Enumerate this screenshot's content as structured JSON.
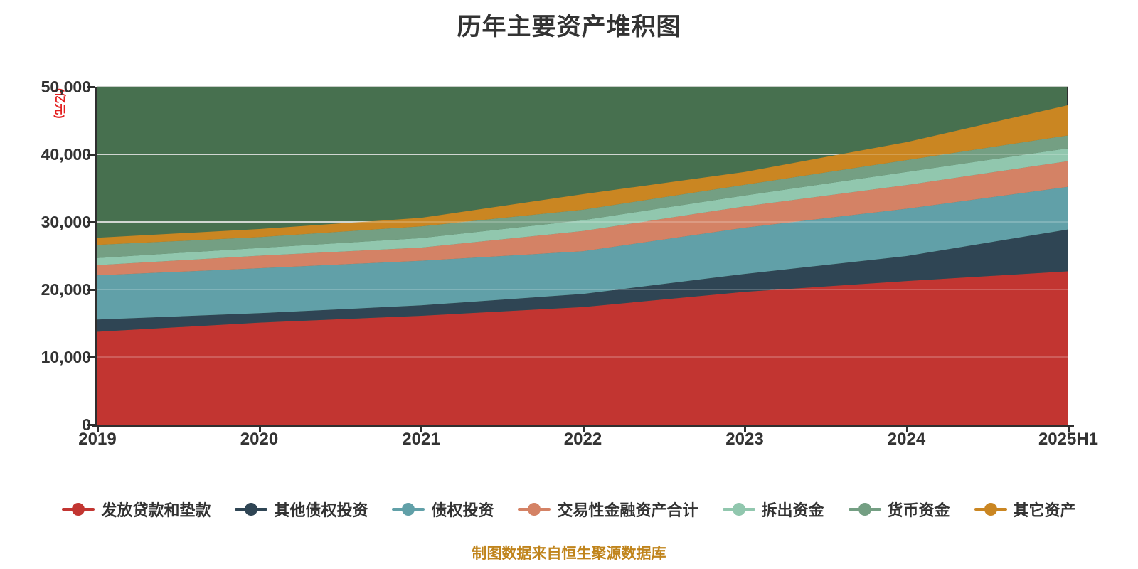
{
  "title": "历年主要资产堆积图",
  "y_axis_unit": "(亿元)",
  "footer": "制图数据来自恒生聚源数据库",
  "colors": {
    "plot_background": "#47704f",
    "gridline": "#c6ccc6",
    "axis": "#2f2f2f",
    "axis_label": "#333333",
    "title": "#333333",
    "unit_label": "#e31f1f",
    "footer": "#c0841c"
  },
  "chart_data": {
    "type": "area",
    "stacked": true,
    "title": "历年主要资产堆积图",
    "ylabel": "(亿元)",
    "ylim": [
      0,
      50000
    ],
    "yticks": [
      0,
      10000,
      20000,
      30000,
      40000,
      50000
    ],
    "ytick_labels": [
      "0",
      "10,000",
      "20,000",
      "30,000",
      "40,000",
      "50,000"
    ],
    "grid": true,
    "legend_position": "bottom",
    "categories": [
      "2019",
      "2020",
      "2021",
      "2022",
      "2023",
      "2024",
      "2025H1"
    ],
    "series": [
      {
        "name": "发放贷款和垫款",
        "color": "#c23531",
        "values": [
          13750,
          15100,
          16100,
          17400,
          19650,
          21250,
          22700
        ]
      },
      {
        "name": "其他债权投资",
        "color": "#2f4554",
        "values": [
          1800,
          1400,
          1550,
          1950,
          2650,
          3700,
          6200
        ]
      },
      {
        "name": "债权投资",
        "color": "#61a0a8",
        "values": [
          6550,
          6650,
          6600,
          6300,
          6850,
          7000,
          6300
        ]
      },
      {
        "name": "交易性金融资产合计",
        "color": "#d48265",
        "values": [
          1500,
          1850,
          1950,
          3000,
          3150,
          3500,
          3800
        ]
      },
      {
        "name": "拆出资金",
        "color": "#91c7ae",
        "values": [
          1050,
          1150,
          1400,
          1600,
          1600,
          1950,
          1900
        ]
      },
      {
        "name": "货币资金",
        "color": "#749f83",
        "values": [
          1950,
          1600,
          1750,
          1550,
          1600,
          1750,
          1900
        ]
      },
      {
        "name": "其它资产",
        "color": "#ca8622",
        "values": [
          1050,
          1200,
          1250,
          2300,
          1900,
          2650,
          4500
        ]
      }
    ]
  }
}
